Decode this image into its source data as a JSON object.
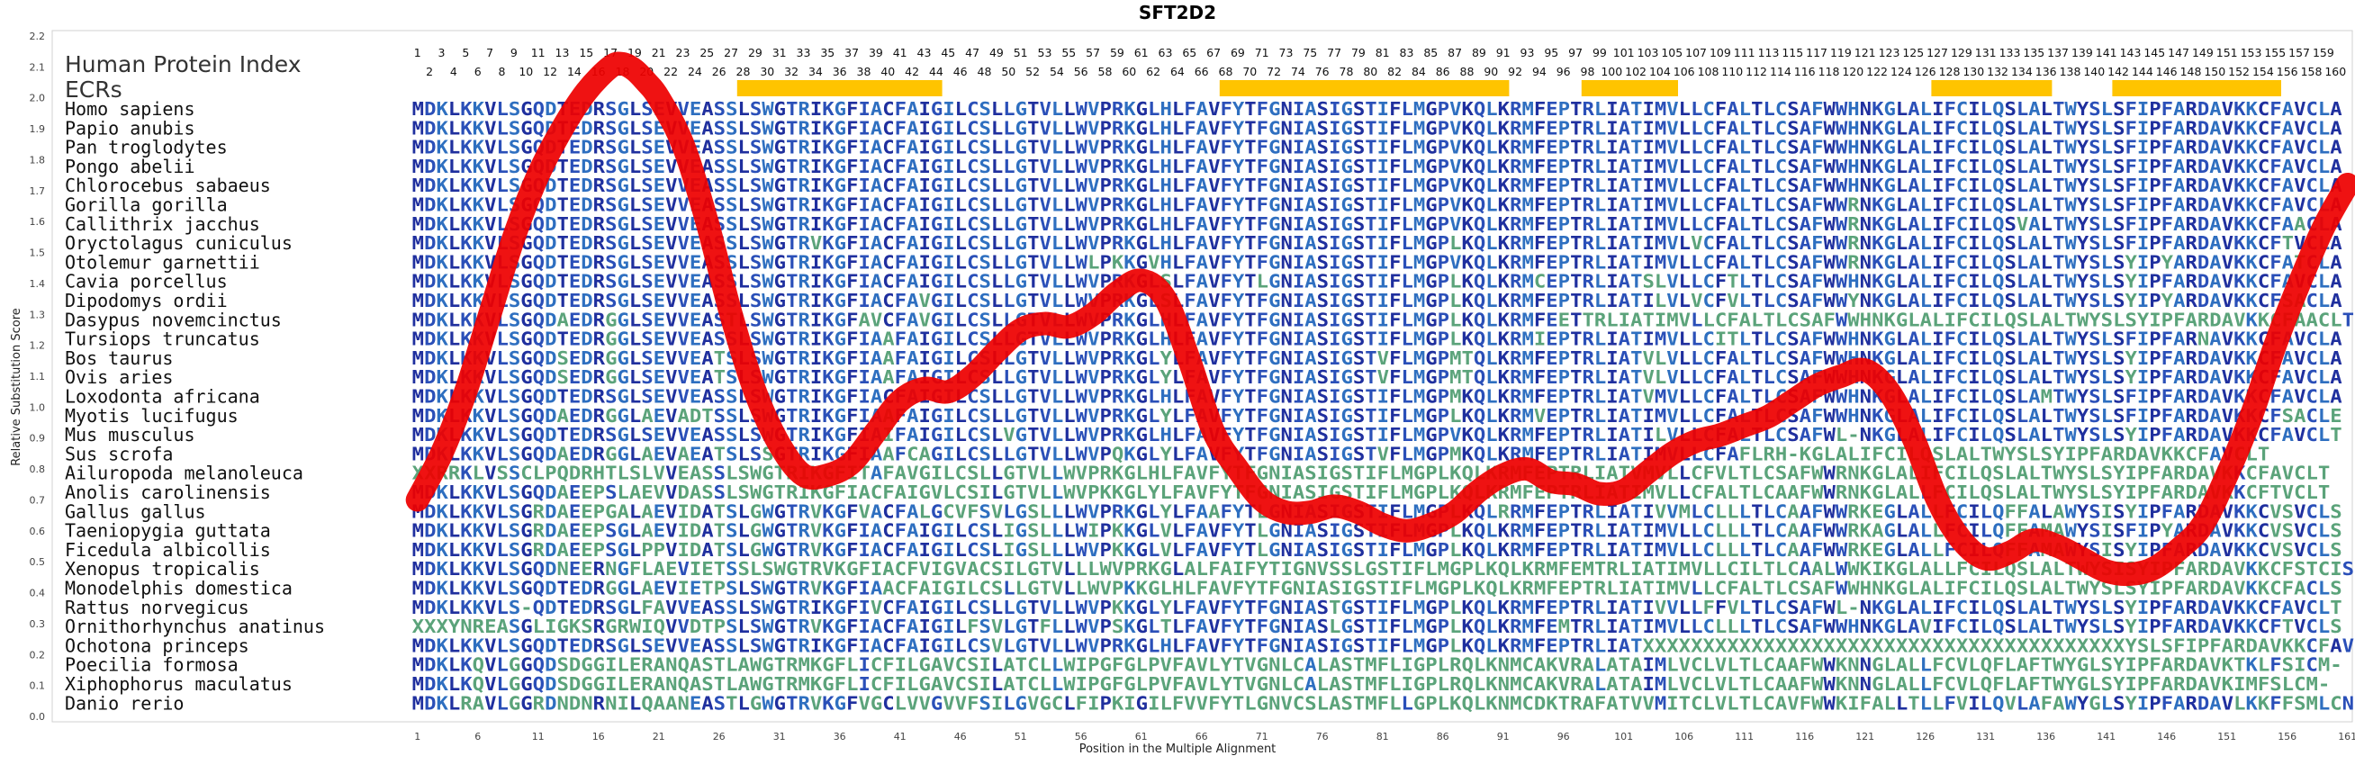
{
  "chart_data": {
    "type": "line",
    "title": "SFT2D2",
    "xlabel": "Position in the Multiple Alignment",
    "ylabel": "Relative Substitution Score",
    "xlim": [
      1,
      161
    ],
    "ylim": [
      0.0,
      2.2
    ],
    "yticks": [
      "0.0",
      "0.1",
      "0.2",
      "0.3",
      "0.4",
      "0.5",
      "0.6",
      "0.7",
      "0.8",
      "0.9",
      "1.0",
      "1.1",
      "1.2",
      "1.3",
      "1.4",
      "1.5",
      "1.6",
      "1.7",
      "1.8",
      "1.9",
      "2.0",
      "2.1",
      "2.2"
    ],
    "xticks": [
      "1",
      "6",
      "11",
      "16",
      "21",
      "26",
      "31",
      "36",
      "41",
      "46",
      "51",
      "56",
      "61",
      "66",
      "71",
      "76",
      "81",
      "86",
      "91",
      "96",
      "101",
      "106",
      "111",
      "116",
      "121",
      "126",
      "131",
      "136",
      "141",
      "146",
      "151",
      "156",
      "161"
    ],
    "top_positions_odd": [
      "1",
      "3",
      "5",
      "7",
      "9",
      "11",
      "13",
      "15",
      "17",
      "19",
      "21",
      "23",
      "25",
      "27",
      "29",
      "31",
      "33",
      "35",
      "37",
      "39",
      "41",
      "43",
      "45",
      "47",
      "49",
      "51",
      "53",
      "55",
      "57",
      "59",
      "61",
      "63",
      "65",
      "67",
      "69",
      "71",
      "73",
      "75",
      "77",
      "79",
      "81",
      "83",
      "85",
      "87",
      "89",
      "91",
      "93",
      "95",
      "97",
      "99",
      "101",
      "103",
      "105",
      "107",
      "109",
      "111",
      "113",
      "115",
      "117",
      "119",
      "121",
      "123",
      "125",
      "127",
      "129",
      "131",
      "133",
      "135",
      "137",
      "139",
      "141",
      "143",
      "145",
      "147",
      "149",
      "151",
      "153",
      "155",
      "157",
      "159"
    ],
    "top_positions_even": [
      "2",
      "4",
      "6",
      "8",
      "10",
      "12",
      "14",
      "16",
      "18",
      "20",
      "22",
      "24",
      "26",
      "28",
      "30",
      "32",
      "34",
      "36",
      "38",
      "40",
      "42",
      "44",
      "46",
      "48",
      "50",
      "52",
      "54",
      "56",
      "58",
      "60",
      "62",
      "64",
      "66",
      "68",
      "70",
      "72",
      "74",
      "76",
      "78",
      "80",
      "82",
      "84",
      "86",
      "88",
      "90",
      "92",
      "94",
      "96",
      "98",
      "100",
      "102",
      "104",
      "106",
      "108",
      "110",
      "112",
      "114",
      "116",
      "118",
      "120",
      "122",
      "124",
      "126",
      "128",
      "130",
      "132",
      "134",
      "136",
      "138",
      "140",
      "142",
      "144",
      "146",
      "148",
      "150",
      "152",
      "154",
      "156",
      "158",
      "160"
    ],
    "legend": {
      "source": "Human Protein Index",
      "ecr_label": "ECRs"
    },
    "ecr_regions": [
      [
        28,
        44
      ],
      [
        68,
        91
      ],
      [
        98,
        105
      ],
      [
        127,
        136
      ],
      [
        142,
        155
      ]
    ],
    "ecr_color": "#ffc400",
    "line_color": "#ee0000",
    "series": [
      {
        "x": [
          1,
          3,
          5,
          7,
          9,
          11,
          13,
          15,
          17,
          18,
          19,
          20,
          21,
          23,
          25,
          27,
          29,
          31,
          33,
          35,
          37,
          39,
          41,
          43,
          45,
          47,
          49,
          51,
          53,
          55,
          57,
          59,
          61,
          63,
          65,
          67,
          69,
          71,
          73,
          75,
          77,
          79,
          81,
          83,
          85,
          87,
          89,
          91,
          93,
          95,
          97,
          99,
          101,
          103,
          105,
          107,
          109,
          111,
          113,
          115,
          117,
          119,
          121,
          123,
          125,
          127,
          129,
          131,
          133,
          135,
          137,
          139,
          141,
          143,
          145,
          147,
          149,
          151,
          153,
          155,
          157,
          159,
          161
        ],
        "y": [
          0.7,
          0.85,
          1.05,
          1.3,
          1.55,
          1.75,
          1.9,
          2.02,
          2.1,
          2.11,
          2.09,
          2.05,
          2.0,
          1.85,
          1.6,
          1.3,
          1.05,
          0.88,
          0.78,
          0.78,
          0.82,
          0.92,
          1.02,
          1.06,
          1.05,
          1.1,
          1.18,
          1.25,
          1.27,
          1.26,
          1.3,
          1.37,
          1.41,
          1.35,
          1.15,
          0.92,
          0.8,
          0.7,
          0.66,
          0.66,
          0.68,
          0.66,
          0.62,
          0.6,
          0.62,
          0.66,
          0.73,
          0.78,
          0.8,
          0.76,
          0.75,
          0.72,
          0.73,
          0.79,
          0.85,
          0.89,
          0.91,
          0.94,
          0.97,
          1.02,
          1.07,
          1.1,
          1.12,
          1.05,
          0.9,
          0.7,
          0.57,
          0.51,
          0.53,
          0.57,
          0.55,
          0.51,
          0.47,
          0.46,
          0.48,
          0.54,
          0.62,
          0.78,
          0.97,
          1.2,
          1.4,
          1.58,
          1.72
        ]
      }
    ],
    "species": [
      "Homo sapiens",
      "Papio anubis",
      "Pan troglodytes",
      "Pongo abelii",
      "Chlorocebus sabaeus",
      "Gorilla gorilla",
      "Callithrix jacchus",
      "Oryctolagus cuniculus",
      "Otolemur garnettii",
      "Cavia porcellus",
      "Dipodomys ordii",
      "Dasypus novemcinctus",
      "Tursiops truncatus",
      "Bos taurus",
      "Ovis aries",
      "Loxodonta africana",
      "Myotis lucifugus",
      "Mus musculus",
      "Sus scrofa",
      "Ailuropoda melanoleuca",
      "Anolis carolinensis",
      "Gallus gallus",
      "Taeniopygia guttata",
      "Ficedula albicollis",
      "Xenopus tropicalis",
      "Monodelphis domestica",
      "Rattus norvegicus",
      "Ornithorhynchus anatinus",
      "Ochotona princeps",
      "Poecilia formosa",
      "Xiphophorus maculatus",
      "Danio rerio"
    ],
    "sequences": [
      "MDKLKKVLSGQDTEDRSGLSEVVEASSLSWGTRIKGFIACFAIGILCSLLGTVLLWVPRKGLHLFAVFYTFGNIASIGSTIFLMGPVKQLKRMFEPTRLIATIMVLLCFALTLCSAFWWHNKGLALIFCILQSLALTWYSLSFIPFARDAVKKCFAVCLA",
      "MDKLKKVLSGQDTEDRSGLSEVVEASSLSWGTRIKGFIACFAIGILCSLLGTVLLWVPRKGLHLFAVFYTFGNIASIGSTIFLMGPVKQLKRMFEPTRLIATIMVLLCFALTLCSAFWWHNKGLALIFCILQSLALTWYSLSFIPFARDAVKKCFAVCLA",
      "MDKLKKVLSGQDTEDRSGLSEVVEASSLSWGTRIKGFIACFAIGILCSLLGTVLLWVPRKGLHLFAVFYTFGNIASIGSTIFLMGPVKQLKRMFEPTRLIATIMVLLCFALTLCSAFWWHNKGLALIFCILQSLALTWYSLSFIPFARDAVKKCFAVCLA",
      "MDKLKKVLSGQDTEDRSGLSEVVEASSLSWGTRIKGFIACFAIGILCSLLGTVLLWVPRKGLHLFAVFYTFGNIASIGSTIFLMGPVKQLKRMFEPTRLIATIMVLLCFALTLCSAFWWHNKGLALIFCILQSLALTWYSLSFIPFARDAVKKCFAVCLA",
      "MDKLKKVLSGQDTEDRSGLSEVVEASSLSWGTRIKGFIACFAIGILCSLLGTVLLWVPRKGLHLFAVFYTFGNIASIGSTIFLMGPVKQLKRMFEPTRLIATIMVLLCFALTLCSAFWWHNKGLALIFCILQSLALTWYSLSFIPFARDAVKKCFAVCLA",
      "MDKLKKVLSGQDTEDRSGLSEVVEASSLSWGTRIKGFIACFAIGILCSLLGTVLLWVPRKGLHLFAVFYTFGNIASIGSTIFLMGPVKQLKRMFEPTRLIATIMVLLCFALTLCSAFWWRNKGLALIFCILQSLALTWYSLSFIPFARDAVKKCFAVCLA",
      "MDKLKKVLSGQDTEDRSGLSEVVEASSLSWGTRIKGFIACFAIGILCSLLGTVLLWVPRKGLHLFAVFYTFGNIASIGSTIFLMGPVKQLKRMFEPTRLIATIMVLLCFALTLCSAFWWRNKGLALIFCILQSVALTWYSLSFIPFARDAVKKCFAACLA",
      "MDKLKKVLSGQDTEDRSGLSEVVEASSLSWGTRVKGFIACFAIGILCSLLGTVLLWVPRKGLHLFAVFYTFGNIASIGSTIFLMGPLKQLKRMFEPTRLIATIMVLVCFALTLCSAFWWRNKGLALIFCILQSLALTWYSLSFIPFARDAVKKCFTVCLA",
      "MDKLKKVLSGQDTEDRSGLSEVVEASSLSWGTRIKGFIACFAIGILCSLLGTVLLWLPKKGVHLFAVFYTFGNIASIGSTIFLMGPVKQLKRMFEPTRLIATIMVLLCFALTLCSAFWWRNKGLALIFCILQSLALTWYSLSYIPYARDAVKKCFATCLA",
      "MDKLKKVLSGQDTEDRSGLSEVVEASSLSWGTRIKGFIACFAIGILCSLLGTVLLWVPRKGLSLFAVFYTLGNIASIGSTIFLMGPLKQLKRMCEPTRLIATSLVLLCFTLTLCSAFWWHNKGLALIFCILQSLALTWYSLSYIPFARDAVKKCFAVCLA",
      "MDKLKKVLSGQDTEDRSGLSEVVEASSLSWGTRIKGFIACFAVGILCSLLGTVLLWVPRKGLSLFAVFYTFGNIASIGSTIFLMGPLKQLKRMFEPTRLIATILVLVCFVLTLCSAFWWYNKGLALIFCILQSLALTWYSLSYIPYARDAVKKCFSACLA",
      "MDKLKKVLSGQDAEDRGGLSEVVEASTLSWGTRIKGFAVCFAVGILCSLLGTVLLWVPRKGLHLFAVFYTFGNIASIGSTIFLMGPLKQLKRMFEETTRLIATIMVLLCFALTLCSAFWWHNKGLALIFCILQSLALTWYSLSYIPFARDAVKKCFAACLT",
      "MDKLKKVLSGQDTEDRGGLSEVVEASSLSWGTRIKGFIAAFAIGILCSLLGTVLLWVPRKGLHLFAVFYTFGNIASIGSTIFLMGPLKQLKRMIEPTRLIATIMVLLCITLTLCSAFWWHNKGLALIFCILQSLALTWYSLSFIPFARNAVKKCFAVCLA",
      "MDKLKKVLSGQDSEDRGGLSEVVEATSLSWGTRIKGFIAAFAIGILCSLLGTVLLWVPRKGLYLFAVFYTFGNIASIGSTVFLMGPMTQLKRMFEPTRLIATVLVLLCFALTLCSAFWWHNKGLALIFCILQSLALTWYSLSYIPFARDAVKKCFAVCLA",
      "MDKLKKVLSGQDSEDRGGLSEVVEATSLSWGTRIKGFIAAFAIGILCSLLGTVLLWVPRKGLYLFAVFYTFGNIASIGSTVFLMGPMTQLKRMFEPTRLIATVLVLLCFALTLCSAFWWHNKGLALIFCILQSLALTWYSLSYIPFARDAVKKCFAVCLA",
      "MDKLKKVLSGQDTEDRSGLSEVVEASSLSWGTRIKGFIACFAIGILCSLLGTVLLWVPRKGLHLFAVFYTFGNIASIGSTIFLMGPMKQLKRMFEPTRLIATVMVLLCFALTLCSAFWWHNKGLALIFCILQSLAMTWYSLSFIPFARDAVKKCFAVCLA",
      "MDKLKKVLSGQDAEDRGGLAEVADTSSLSWGTRIKGFIAAFAIGILCSLLGTVLLWVPRKGLYLFAVFYTFGNIASIGSTIFLMGPLKQLKRMVEPTRLIATIMVLLCFALTLCSAFWWHNKGLALIFCILQSLALTWYSLSFIPFARDAVKKCFSACLE",
      "MDKLKKVLSGQDTEDRSGLSEVVEASSLSWGTRIKGFIAIFAIGILCSLVGTVLLWVPRKGLHLFAVFYTFGNIASIGSTIFLMGPVKQLKRMFEPTRLIATILVLLCFALTLCSAFWL-NKGLALIFCILQSLALTWYSLSYIPFARDAVKKCFAVCLT",
      "MDKLKKVLSGQDAEDRGGLAEVAEATSLSSGTRIKGFIAAFCAGILCSLLGTVLLWVPQKGLYLFAVFYTFGNIASIGSTVFLMGPMKQLKRMFEPTRLIATIMVLLCFAFLRH-KGLALIFCILQSLALTWYSLSYIPFARDAVKKCFAVCLT",
      "XXRRKLVSSCLPQDRHTLSLVVEASSLSWGTRIKGFITAFAVGILCSLLGTVLLWVPRKGLHLFAVFYTFGNIASIGSTIFLMGPLKQLKRMFEPTRLIATVMVLLCFVLTLCSAFWWRNKGLALIFCILQSLALTWYSLSYIPFARDAVKKCFAVCLT",
      "MDKLKKVLSGQDAEEPSLAEVVDASSLSWGTRIKGFIACFAIGVLCSILGTVLLWVPKKGLYLFAVFYTFGNIASIGSTIFLMGPLKQLKRMFEPTRLIATIMVLLCFALTLCAAFWWRNKGLALLFCILQSLALTWYSLSYIPFARDAVKKCFTVCLT",
      "MDKLKKVLSGRDAEEPGALAEVIDATSLGWGTRVKGFVACFALGCVFSVLGSLLLWVPRKGLYLFAAFYTLGNIASIGSTIFLMGPLKQLRRMFEPTRLIATIVVMLCLLLTLCAAFWWRKEGLALLFCILQFFALAWYSISYIPFARDAVKKCVSVCLS",
      "MDKLKKVLSGRDAEEPSGLAEVIDATSLGWGTRVKGFIACFAIGILCSLIGSLLLWIPKKGLVLFAVFYTLGNIASIGSTIFLMGPLKQLKRMFEPTRLIATIMVLLCLLLTLCAAFWWRKAGLALLFCILQFFAMAWYSISFIPYARDAVKKCVSVCLS",
      "MDKLKKVLSGRDAEEPSGLPPVIDATSLGWGTRVKGFIACFAIGILCSLIGSLLLWVPKKGLVLFAVFYTLGNIASIGSTIFLMGPLKQLKRMFEPTRLIATIMVLLCLLLTLCAAFWWRKEGLALLFCILQFFAMAWYSISYIPFARDAVKKCVSVCLS",
      "MDKLKKVLSGQDNEERNGFLAEVIETSSLSWGTRVKGFIACFVIGVACSILGTVLLLWVPRKGLALFAIFYTIGNVSSLGSTIFLMGPLKQLKRMFEMTRLIATIMVLLCILTLCAALWWKIKGLALLFCILQSLALTWYSISYIPFARDAVKKCFSTCIS",
      "MDKLKKVLSGQDTEDRGGLAEVIETPSLSWGTRVKGFIAACFAIGILCSLLGTVLLWVPKKGLHLFAVFYTFGNIASIGSTIFLMGPLKQLKRMFEPTRLIATIMVLLCFALTLCSAFWWHNKGLALIFCILQSLALTWYSLSYIPFARDAVKKCFACLS",
      "MDKLKKVLS-QDTEDRSGLFAVVEASSLSWGTRIKGFIVCFAIGILCSLLGTVLLWVPKKGLYLFAVFYTFGNIASTGSTIFLMGPLKQLKRMFEPTRLIATIVVLLFFVLTLCSAFWL-NKGLALIFCILQSLALTWYSLSYIPFARDAVKKCFAVCLT",
      "XXXYNREASGLIGKSRGRWIQVVDTPSLSWGTRVKGFIACFAIGILFSVLGTFLLWVPSKGLTLFAVFYTFGNIASLGSTIFLMGPLKQLKRMFEMTRLIATIMVLLCLLLTLCSAFWWHNKGLAVIFCILQSLALTWYSLSYIPFARDAVKKCFTVCLS",
      "MDKLKKVLSGQDTEDRSGLSEVVEASSLSWGTRIKGFIACFAIGILCSVLGTVLLWVPRKGLHLFAVFYTFGNIASIGSTIFLMGPLKQLKRMFEPTRLIATXXXXXXXXXXXXXXXXXXXXXXXXXXXXXXXXXXXXXXXXYSLSFIPFARDAVKKCFAVCLT",
      "MDKLKQVLGGQDSDGGILERANQASTLAWGTRMKGFLICFILGAVCSILATCLLWIPGFGLPVFAVLYTVGNLCALASTMFLIGPLRQLKNMCAKVRALATAIMLVCLVLTLCAAFWWKNNGLALLFCVLQFLAFTWYGLSYIPFARDAVKTKLFSICM-",
      "MDKLKQVLGGQDSDGGILERANQASTLAWGTRMKGFLICFILGAVCSILATCLLWIPGFGLPVFAVLYTVGNLCALASTMFLIGPLRQLKNMCAKVRALATAIMLVCLVLTLCAAFWWKNNGLALLFCVLQFLAFTWYGLSYIPFARDAVKIMFSLCM-",
      "MDKLRAVLGGRDNDNRNILQAANEASTLGWGTRVKGFVGCLVVGVVFSILGVGCLFIPKIGILFVVFYTLGNVCSLASTMFLLGPLKQLKNMCDKTRAFATVVMITCLVLTLCAVFWWKIFALLTLLFVILQVLAFAWYGLSYIPFARDAVLKKFFSMLCN"
    ]
  }
}
